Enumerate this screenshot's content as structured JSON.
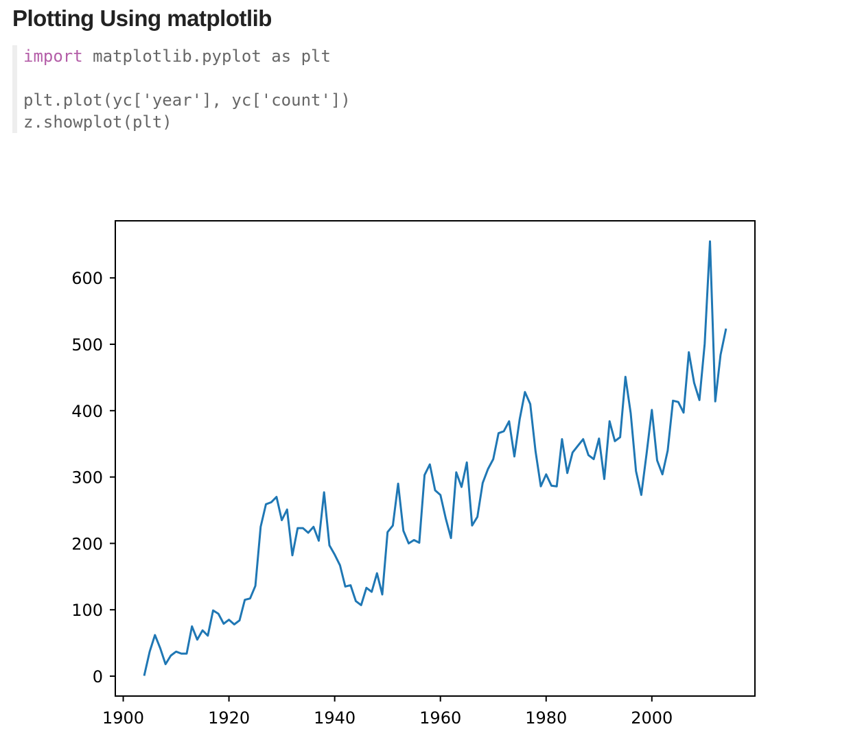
{
  "page": {
    "heading": "Plotting Using matplotlib"
  },
  "code_block": {
    "lines": [
      {
        "keyword": "import",
        "rest": " matplotlib.pyplot as plt"
      },
      {
        "keyword": "",
        "rest": ""
      },
      {
        "keyword": "",
        "rest": "plt.plot(yc['year'], yc['count'])"
      },
      {
        "keyword": "",
        "rest": "z.showplot(plt)"
      }
    ],
    "keyword_color": "#b45ea8",
    "text_color": "#666666"
  },
  "chart_data": {
    "type": "line",
    "title": "",
    "xlabel": "",
    "ylabel": "",
    "xlim": [
      1898.5,
      2019.5
    ],
    "ylim": [
      -30,
      686
    ],
    "grid": false,
    "x_ticks": [
      1900,
      1920,
      1940,
      1960,
      1980,
      2000
    ],
    "y_ticks": [
      0,
      100,
      200,
      300,
      400,
      500,
      600
    ],
    "series": [
      {
        "color": "#1f77b4",
        "x": [
          1904,
          1905,
          1906,
          1907,
          1908,
          1909,
          1910,
          1911,
          1912,
          1913,
          1914,
          1915,
          1916,
          1917,
          1918,
          1919,
          1920,
          1921,
          1922,
          1923,
          1924,
          1925,
          1926,
          1927,
          1928,
          1929,
          1930,
          1931,
          1932,
          1933,
          1934,
          1935,
          1936,
          1937,
          1938,
          1939,
          1940,
          1941,
          1942,
          1943,
          1944,
          1945,
          1946,
          1947,
          1948,
          1949,
          1950,
          1951,
          1952,
          1953,
          1954,
          1955,
          1956,
          1957,
          1958,
          1959,
          1960,
          1961,
          1962,
          1963,
          1964,
          1965,
          1966,
          1967,
          1968,
          1969,
          1970,
          1971,
          1972,
          1973,
          1974,
          1975,
          1976,
          1977,
          1978,
          1979,
          1980,
          1981,
          1982,
          1983,
          1984,
          1985,
          1986,
          1987,
          1988,
          1989,
          1990,
          1991,
          1992,
          1993,
          1994,
          1995,
          1996,
          1997,
          1998,
          1999,
          2000,
          2001,
          2002,
          2003,
          2004,
          2005,
          2006,
          2007,
          2008,
          2009,
          2010,
          2011,
          2012,
          2013,
          2014
        ],
        "y": [
          2,
          37,
          62,
          42,
          18,
          31,
          37,
          34,
          34,
          75,
          55,
          69,
          61,
          99,
          94,
          79,
          85,
          78,
          84,
          115,
          117,
          136,
          225,
          259,
          262,
          270,
          235,
          251,
          182,
          223,
          223,
          216,
          225,
          204,
          277,
          197,
          183,
          167,
          135,
          137,
          113,
          107,
          133,
          127,
          155,
          123,
          217,
          227,
          290,
          219,
          200,
          205,
          201,
          303,
          319,
          280,
          273,
          238,
          208,
          307,
          285,
          322,
          227,
          240,
          291,
          312,
          327,
          366,
          369,
          384,
          331,
          387,
          428,
          410,
          339,
          286,
          304,
          287,
          286,
          357,
          306,
          337,
          347,
          357,
          333,
          327,
          358,
          297,
          384,
          354,
          360,
          451,
          396,
          309,
          273,
          335,
          401,
          325,
          304,
          340,
          415,
          413,
          397,
          488,
          442,
          416,
          501,
          655,
          414,
          484,
          522
        ]
      }
    ]
  }
}
